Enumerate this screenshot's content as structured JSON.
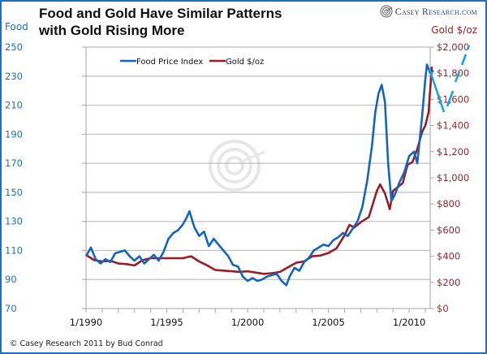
{
  "header": {
    "title": "Food and Gold Have Similar Patterns with Gold Rising More",
    "brand_part1": "Casey ",
    "brand_part2": "Research.com"
  },
  "footer": {
    "copyright": "© Casey Research 2011 by Bud Conrad"
  },
  "colors": {
    "food": "#1565c0",
    "gold": "#9b1c22",
    "annotation": "#1aa3e0",
    "grid": "#bfbfbf",
    "frame": "#1f6fc0"
  },
  "chart_data": {
    "type": "line",
    "title": "Food and Gold Have Similar Patterns with Gold Rising More",
    "xlabel": "",
    "ylabel": "Food",
    "y2label": "Gold $/oz",
    "xlim": [
      1990.0,
      2011.3
    ],
    "ylim": [
      70,
      250
    ],
    "y2lim": [
      0,
      2000
    ],
    "grid": true,
    "legend_position": "top-left",
    "x_tick_labels": [
      "1/1990",
      "1/1995",
      "1/2000",
      "1/2005",
      "1/2010"
    ],
    "x_tick_values": [
      1990,
      1995,
      2000,
      2005,
      2010
    ],
    "y_tick_labels": [
      "250",
      "230",
      "210",
      "190",
      "170",
      "150",
      "130",
      "110",
      "90",
      "70"
    ],
    "y_tick_values": [
      250,
      230,
      210,
      190,
      170,
      150,
      130,
      110,
      90,
      70
    ],
    "y2_tick_labels": [
      "$2,000",
      "$1,800",
      "$1,600",
      "$1,400",
      "$1,200",
      "$1,000",
      "$800",
      "$600",
      "$400",
      "$200",
      "$0"
    ],
    "y2_tick_values": [
      2000,
      1800,
      1600,
      1400,
      1200,
      1000,
      800,
      600,
      400,
      200,
      0
    ],
    "series": [
      {
        "name": "Food Price Index",
        "axis": "left",
        "x": [
          1990.0,
          1990.3,
          1990.6,
          1990.9,
          1991.2,
          1991.5,
          1991.8,
          1992.1,
          1992.4,
          1992.7,
          1993.0,
          1993.3,
          1993.6,
          1993.9,
          1994.2,
          1994.5,
          1994.8,
          1995.1,
          1995.4,
          1995.7,
          1996.0,
          1996.2,
          1996.4,
          1996.7,
          1997.0,
          1997.3,
          1997.6,
          1997.9,
          1998.2,
          1998.5,
          1998.8,
          1999.1,
          1999.4,
          1999.7,
          2000.0,
          2000.3,
          2000.6,
          2000.9,
          2001.2,
          2001.5,
          2001.8,
          2002.1,
          2002.4,
          2002.6,
          2002.9,
          2003.2,
          2003.5,
          2003.8,
          2004.1,
          2004.4,
          2004.7,
          2005.0,
          2005.3,
          2005.6,
          2005.9,
          2006.2,
          2006.5,
          2006.8,
          2007.1,
          2007.4,
          2007.7,
          2007.9,
          2008.1,
          2008.3,
          2008.5,
          2008.7,
          2008.9,
          2009.1,
          2009.4,
          2009.7,
          2010.0,
          2010.3,
          2010.5,
          2010.8,
          2011.0,
          2011.1,
          2011.3,
          2011.5
        ],
        "values": [
          106,
          112,
          104,
          101,
          104,
          102,
          108,
          109,
          110,
          106,
          103,
          106,
          101,
          104,
          107,
          103,
          109,
          118,
          122,
          124,
          128,
          132,
          137,
          126,
          120,
          123,
          113,
          118,
          114,
          110,
          106,
          100,
          99,
          92,
          89,
          91,
          89,
          90,
          92,
          93,
          94,
          89,
          86,
          92,
          98,
          96,
          102,
          105,
          110,
          112,
          114,
          113,
          117,
          119,
          122,
          120,
          125,
          130,
          140,
          158,
          182,
          205,
          218,
          224,
          212,
          170,
          144,
          148,
          157,
          164,
          175,
          178,
          170,
          202,
          228,
          238,
          232,
          234
        ]
      },
      {
        "name": "Gold $/oz",
        "axis": "right",
        "x": [
          1990.0,
          1990.5,
          1991.0,
          1991.5,
          1992.0,
          1992.5,
          1993.0,
          1993.5,
          1994.0,
          1994.5,
          1995.0,
          1995.5,
          1996.0,
          1996.5,
          1997.0,
          1997.5,
          1998.0,
          1998.5,
          1999.0,
          1999.5,
          2000.0,
          2000.5,
          2001.0,
          2001.5,
          2002.0,
          2002.5,
          2003.0,
          2003.5,
          2004.0,
          2004.5,
          2005.0,
          2005.5,
          2006.0,
          2006.3,
          2006.6,
          2007.0,
          2007.5,
          2008.0,
          2008.2,
          2008.5,
          2008.8,
          2009.0,
          2009.3,
          2009.6,
          2009.9,
          2010.2,
          2010.5,
          2010.8,
          2011.0,
          2011.2,
          2011.4
        ],
        "values": [
          410,
          370,
          360,
          365,
          345,
          340,
          330,
          370,
          385,
          385,
          385,
          385,
          385,
          400,
          360,
          330,
          295,
          290,
          285,
          280,
          285,
          275,
          265,
          270,
          280,
          315,
          350,
          360,
          400,
          405,
          425,
          460,
          560,
          640,
          620,
          660,
          700,
          900,
          950,
          880,
          760,
          900,
          930,
          960,
          1100,
          1120,
          1220,
          1350,
          1400,
          1500,
          1850
        ]
      }
    ],
    "annotations": [
      {
        "type": "hand-drawn-arrow",
        "description": "Cyan line drawn from end of food series down then dashed up toward $2,000"
      }
    ]
  }
}
